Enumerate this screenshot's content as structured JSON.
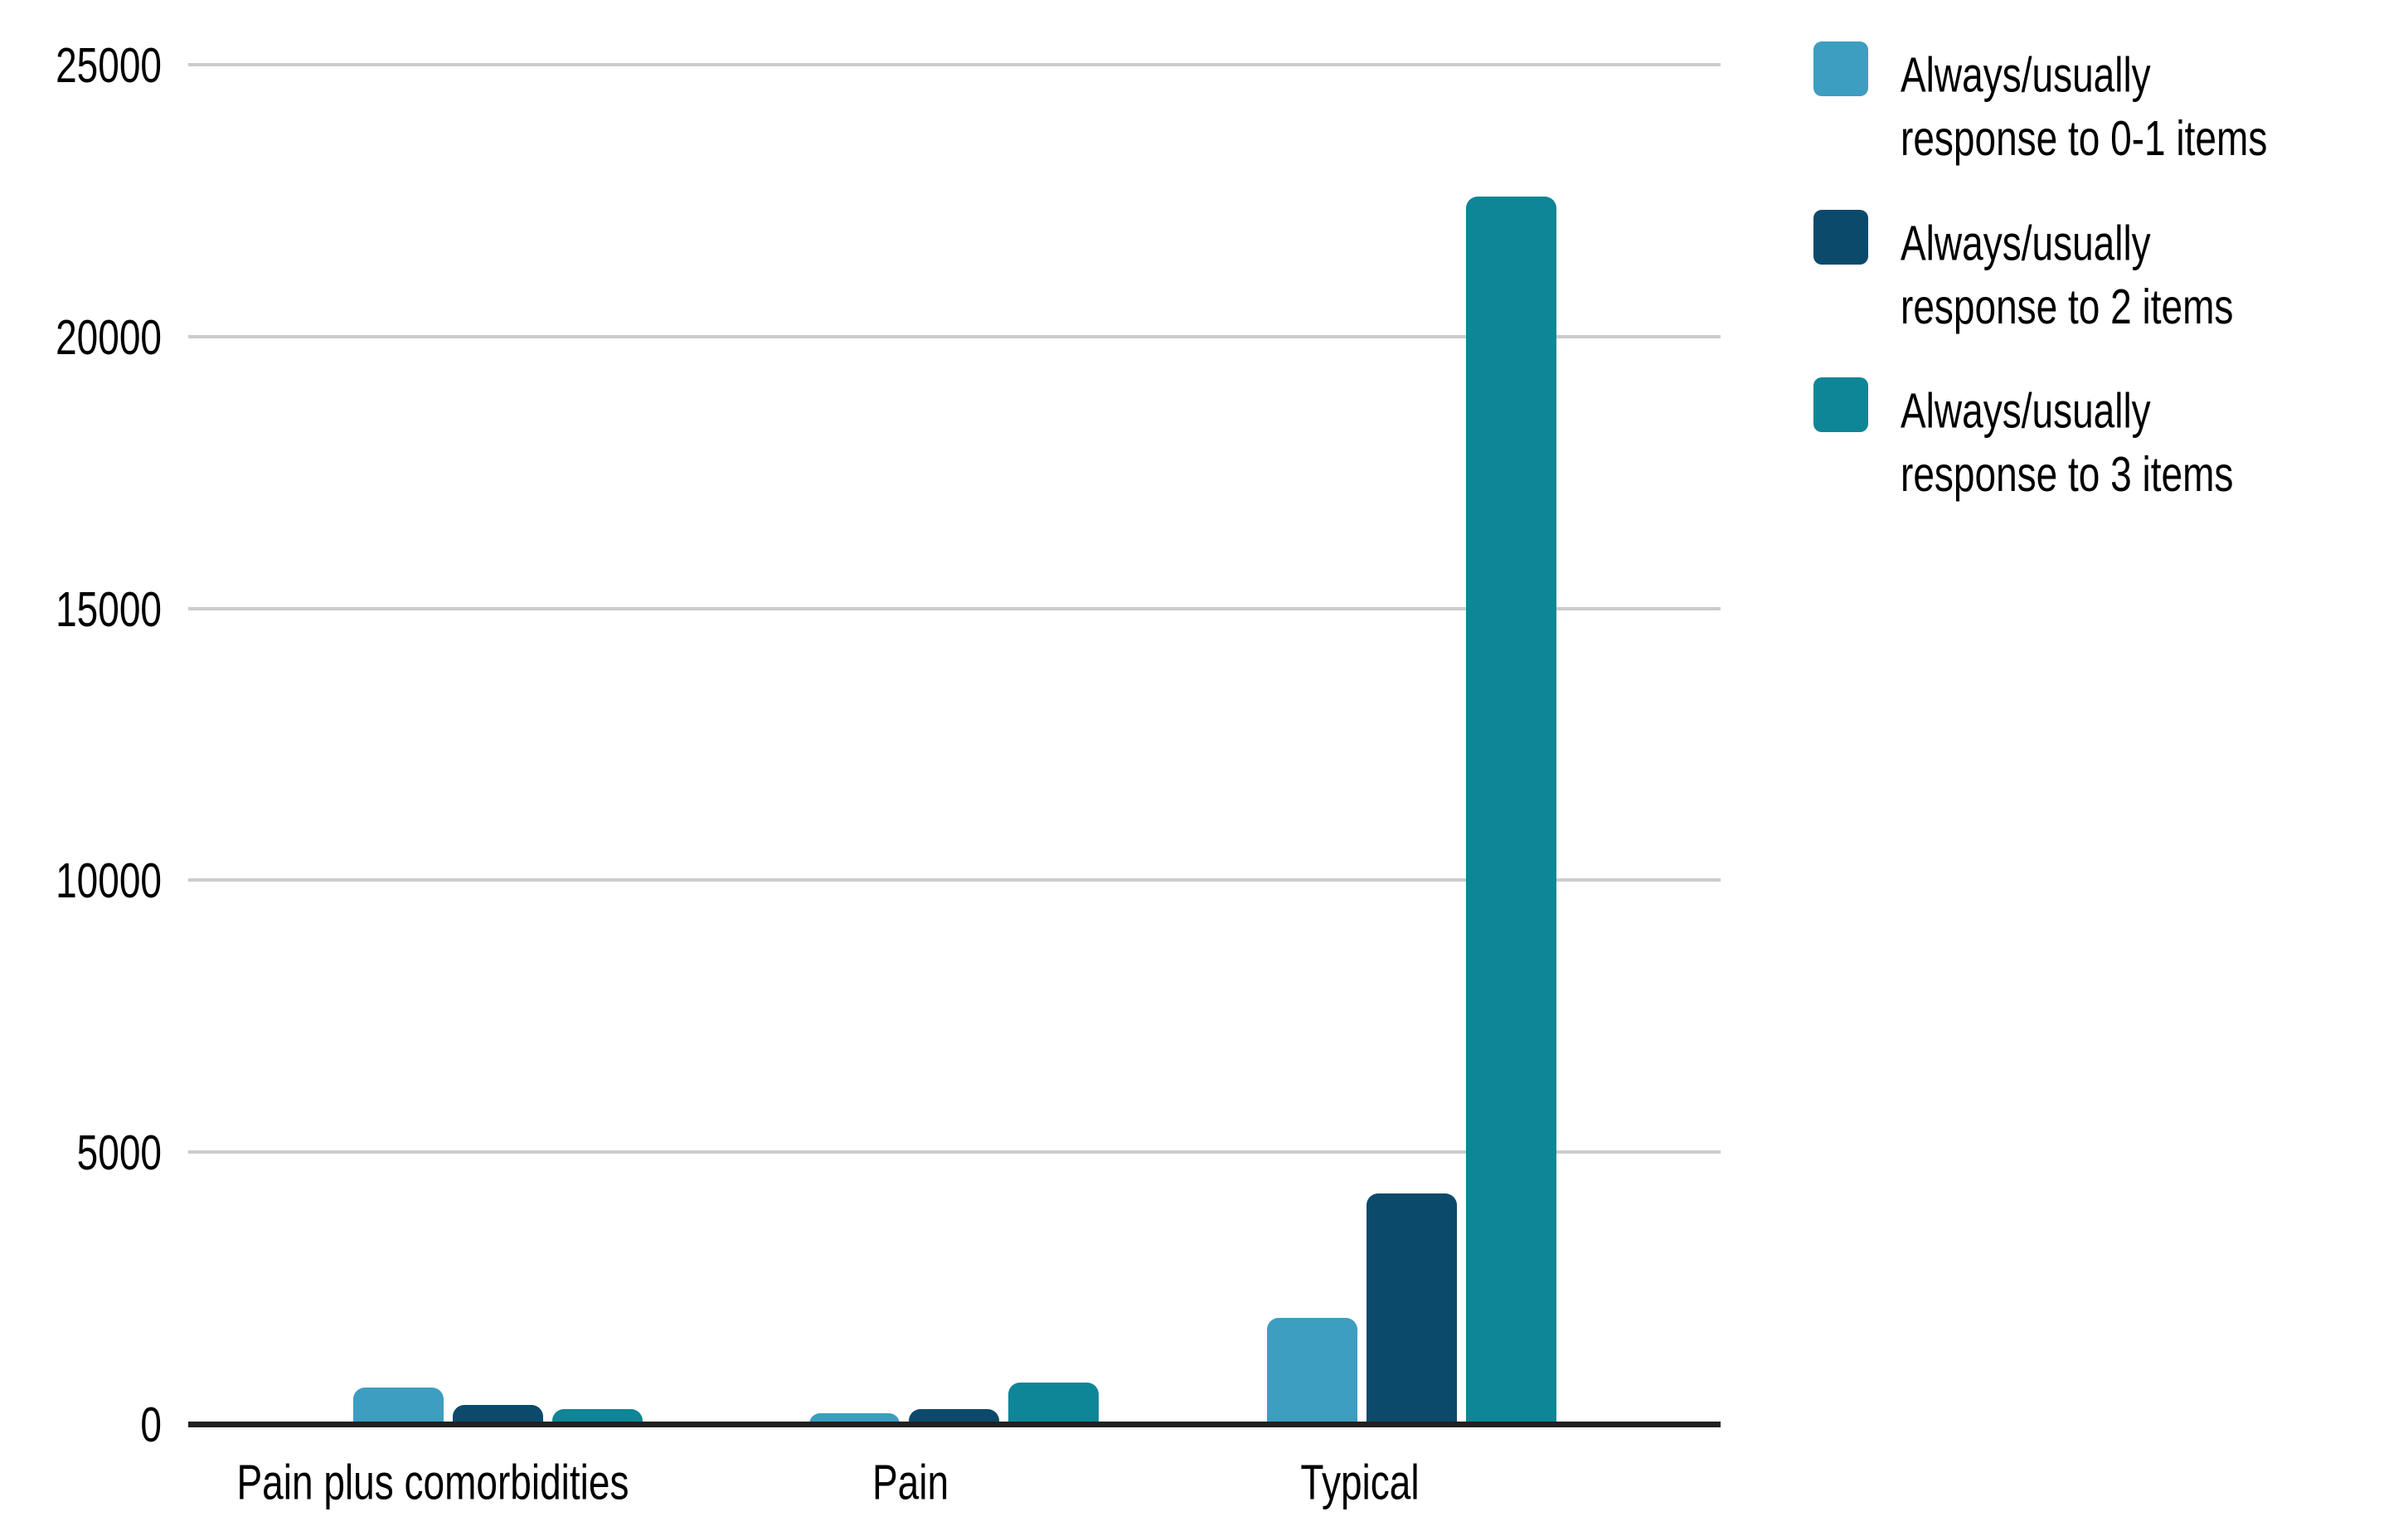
{
  "chart_data": {
    "type": "bar",
    "title": "",
    "xlabel": "",
    "ylabel": "",
    "categories": [
      "Pain plus comorbidities",
      "Pain",
      "Typical"
    ],
    "series": [
      {
        "name": "Always/usually response to 0-1 items",
        "color": "#3D9EC1",
        "values": [
          670,
          200,
          1950
        ]
      },
      {
        "name": "Always/usually response to 2 items",
        "color": "#0C4A6B",
        "values": [
          350,
          280,
          4240
        ]
      },
      {
        "name": "Always/usually response to 3 items",
        "color": "#0E8697",
        "values": [
          270,
          760,
          22580
        ]
      }
    ],
    "y_ticks": [
      0,
      5000,
      10000,
      15000,
      20000,
      25000
    ],
    "ylim": [
      0,
      25000
    ],
    "grid": true,
    "legend_position": "right",
    "background_color": "#ffffff",
    "axis_color": "#212121",
    "grid_color": "#cccccc",
    "text_color": "#000000"
  }
}
